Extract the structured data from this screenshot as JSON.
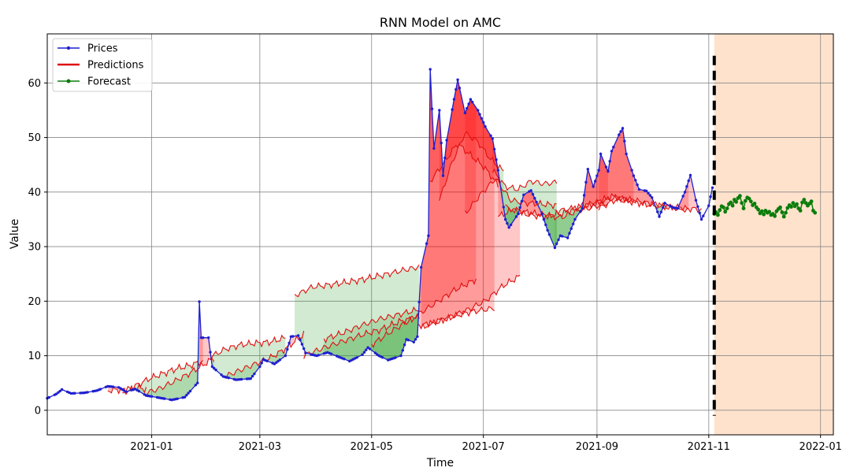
{
  "chart_data": {
    "type": "line",
    "title": "RNN Model on AMC",
    "xlabel": "Time",
    "ylabel": "Value",
    "xlim": [
      "2020-11-05",
      "2022-01-08"
    ],
    "ylim": [
      -4.5,
      69
    ],
    "grid": true,
    "legend_position": "top-left",
    "x_ticks": [
      {
        "date": "2021-01-01",
        "label": "2021-01"
      },
      {
        "date": "2021-03-01",
        "label": "2021-03"
      },
      {
        "date": "2021-05-01",
        "label": "2021-05"
      },
      {
        "date": "2021-07-01",
        "label": "2021-07"
      },
      {
        "date": "2021-09-01",
        "label": "2021-09"
      },
      {
        "date": "2021-11-01",
        "label": "2021-11"
      },
      {
        "date": "2022-01-01",
        "label": "2022-01"
      }
    ],
    "y_ticks": [
      0,
      10,
      20,
      30,
      40,
      50,
      60
    ],
    "legend": [
      {
        "label": "Prices",
        "color": "#1f1fd0",
        "style": "line-marker"
      },
      {
        "label": "Predictions",
        "color": "#e01010",
        "style": "line"
      },
      {
        "label": "Forecast",
        "color": "#0a7d0a",
        "style": "line-marker"
      }
    ],
    "forecast_divider_date": "2021-11-04",
    "forecast_region": [
      "2021-11-04",
      "2022-01-08"
    ],
    "forecast_region_color": "#ffe2cc",
    "series": [
      {
        "name": "Prices",
        "color": "#1f1fd0",
        "points": [
          [
            "2020-11-05",
            2.2
          ],
          [
            "2020-11-10",
            3.0
          ],
          [
            "2020-11-13",
            3.8
          ],
          [
            "2020-11-18",
            3.1
          ],
          [
            "2020-11-25",
            3.2
          ],
          [
            "2020-12-02",
            3.6
          ],
          [
            "2020-12-08",
            4.4
          ],
          [
            "2020-12-14",
            4.2
          ],
          [
            "2020-12-18",
            3.4
          ],
          [
            "2020-12-23",
            3.9
          ],
          [
            "2020-12-29",
            2.7
          ],
          [
            "2021-01-05",
            2.3
          ],
          [
            "2021-01-12",
            1.9
          ],
          [
            "2021-01-19",
            2.4
          ],
          [
            "2021-01-22",
            3.5
          ],
          [
            "2021-01-26",
            5.0
          ],
          [
            "2021-01-27",
            19.9
          ],
          [
            "2021-01-28",
            13.3
          ],
          [
            "2021-02-01",
            13.3
          ],
          [
            "2021-02-03",
            8.0
          ],
          [
            "2021-02-09",
            6.2
          ],
          [
            "2021-02-16",
            5.6
          ],
          [
            "2021-02-24",
            5.8
          ],
          [
            "2021-03-01",
            8.0
          ],
          [
            "2021-03-03",
            9.3
          ],
          [
            "2021-03-09",
            8.5
          ],
          [
            "2021-03-15",
            10.0
          ],
          [
            "2021-03-18",
            13.5
          ],
          [
            "2021-03-22",
            13.7
          ],
          [
            "2021-03-26",
            10.5
          ],
          [
            "2021-04-01",
            10.0
          ],
          [
            "2021-04-07",
            10.6
          ],
          [
            "2021-04-13",
            9.8
          ],
          [
            "2021-04-19",
            9.0
          ],
          [
            "2021-04-26",
            10.2
          ],
          [
            "2021-04-29",
            11.5
          ],
          [
            "2021-05-05",
            10.0
          ],
          [
            "2021-05-10",
            9.2
          ],
          [
            "2021-05-17",
            10.0
          ],
          [
            "2021-05-20",
            13.0
          ],
          [
            "2021-05-24",
            12.5
          ],
          [
            "2021-05-26",
            13.5
          ],
          [
            "2021-05-28",
            26.2
          ],
          [
            "2021-06-01",
            32.0
          ],
          [
            "2021-06-02",
            62.5
          ],
          [
            "2021-06-04",
            48.0
          ],
          [
            "2021-06-07",
            55.0
          ],
          [
            "2021-06-09",
            43.0
          ],
          [
            "2021-06-11",
            49.5
          ],
          [
            "2021-06-15",
            57.0
          ],
          [
            "2021-06-17",
            60.6
          ],
          [
            "2021-06-21",
            54.5
          ],
          [
            "2021-06-24",
            57.0
          ],
          [
            "2021-06-28",
            55.0
          ],
          [
            "2021-07-02",
            52.0
          ],
          [
            "2021-07-06",
            49.8
          ],
          [
            "2021-07-09",
            44.0
          ],
          [
            "2021-07-13",
            35.0
          ],
          [
            "2021-07-15",
            33.5
          ],
          [
            "2021-07-20",
            36.0
          ],
          [
            "2021-07-23",
            39.5
          ],
          [
            "2021-07-27",
            40.3
          ],
          [
            "2021-08-02",
            36.0
          ],
          [
            "2021-08-05",
            33.0
          ],
          [
            "2021-08-09",
            29.8
          ],
          [
            "2021-08-12",
            32.0
          ],
          [
            "2021-08-16",
            31.6
          ],
          [
            "2021-08-20",
            35.0
          ],
          [
            "2021-08-24",
            37.0
          ],
          [
            "2021-08-27",
            44.2
          ],
          [
            "2021-08-30",
            41.0
          ],
          [
            "2021-09-02",
            44.0
          ],
          [
            "2021-09-03",
            47.0
          ],
          [
            "2021-09-07",
            43.8
          ],
          [
            "2021-09-09",
            47.5
          ],
          [
            "2021-09-13",
            50.5
          ],
          [
            "2021-09-15",
            51.7
          ],
          [
            "2021-09-17",
            47.0
          ],
          [
            "2021-09-21",
            43.0
          ],
          [
            "2021-09-24",
            40.5
          ],
          [
            "2021-09-28",
            40.2
          ],
          [
            "2021-10-01",
            39.0
          ],
          [
            "2021-10-05",
            35.5
          ],
          [
            "2021-10-08",
            38.0
          ],
          [
            "2021-10-12",
            37.2
          ],
          [
            "2021-10-15",
            37.0
          ],
          [
            "2021-10-19",
            40.0
          ],
          [
            "2021-10-22",
            43.1
          ],
          [
            "2021-10-25",
            38.5
          ],
          [
            "2021-10-28",
            35.0
          ],
          [
            "2021-11-01",
            37.5
          ],
          [
            "2021-11-03",
            40.8
          ]
        ]
      },
      {
        "name": "Predictions",
        "color": "#e01010",
        "windows": [
          {
            "start": "2020-12-08",
            "end": "2020-12-29",
            "values": [
              3.6,
              3.8,
              3.5,
              4.1,
              3.9
            ]
          },
          {
            "start": "2020-12-16",
            "end": "2021-01-29",
            "values": [
              3.4,
              4.5,
              5.8,
              6.7,
              7.6,
              8.2,
              9.0
            ]
          },
          {
            "start": "2020-12-29",
            "end": "2021-02-04",
            "values": [
              3.2,
              4.0,
              5.2,
              6.5,
              8.0,
              9.6
            ]
          },
          {
            "start": "2021-02-02",
            "end": "2021-03-15",
            "values": [
              9.8,
              11.2,
              12.0,
              12.3,
              12.5,
              13.3
            ]
          },
          {
            "start": "2021-02-10",
            "end": "2021-03-25",
            "values": [
              6.2,
              7.4,
              8.6,
              9.8,
              11.6,
              14.0
            ]
          },
          {
            "start": "2021-03-20",
            "end": "2021-05-27",
            "values": [
              21.0,
              22.6,
              23.0,
              23.5,
              24.1,
              24.8,
              25.6,
              26.3
            ]
          },
          {
            "start": "2021-03-25",
            "end": "2021-05-27",
            "values": [
              10.0,
              11.4,
              12.6,
              13.8,
              14.8,
              16.3,
              17.1
            ]
          },
          {
            "start": "2021-04-05",
            "end": "2021-05-27",
            "values": [
              13.0,
              14.2,
              15.6,
              16.8,
              17.6,
              18.5
            ]
          },
          {
            "start": "2021-05-01",
            "end": "2021-06-27",
            "values": [
              12.0,
              14.6,
              17.0,
              19.5,
              22.1,
              24.0
            ]
          },
          {
            "start": "2021-05-26",
            "end": "2021-07-21",
            "values": [
              15.5,
              16.0,
              17.2,
              18.5,
              20.1,
              22.8,
              24.6
            ]
          },
          {
            "start": "2021-05-28",
            "end": "2021-07-07",
            "values": [
              15.0,
              16.3,
              17.0,
              17.8,
              18.3,
              18.7
            ]
          },
          {
            "start": "2021-06-02",
            "end": "2021-07-09",
            "values": [
              42.0,
              45.3,
              48.9,
              46.7,
              44.5,
              41.3
            ]
          },
          {
            "start": "2021-06-07",
            "end": "2021-07-12",
            "values": [
              38.5,
              45.5,
              50.8,
              49.2,
              46.0,
              43.8
            ]
          },
          {
            "start": "2021-06-21",
            "end": "2021-08-10",
            "values": [
              36.0,
              39.5,
              42.5,
              38.5,
              38.0,
              37.8,
              37.6
            ]
          },
          {
            "start": "2021-07-06",
            "end": "2021-08-10",
            "values": [
              44.0,
              41.0,
              40.5,
              42.0,
              41.5,
              41.8
            ]
          },
          {
            "start": "2021-07-09",
            "end": "2021-09-07",
            "values": [
              35.5,
              36.8,
              36.2,
              35.8,
              35.3,
              36.5,
              37.2,
              38.0
            ]
          },
          {
            "start": "2021-07-13",
            "end": "2021-09-21",
            "values": [
              37.3,
              36.0,
              35.5,
              36.0,
              37.2,
              38.1,
              39.0,
              38.3
            ]
          },
          {
            "start": "2021-08-09",
            "end": "2021-10-21",
            "values": [
              36.5,
              37.0,
              37.8,
              39.2,
              38.5,
              37.9,
              37.2,
              36.7
            ]
          },
          {
            "start": "2021-09-02",
            "end": "2021-10-28",
            "values": [
              37.0,
              38.6,
              38.2,
              37.6,
              37.4,
              37.0,
              36.8
            ]
          }
        ]
      },
      {
        "name": "Forecast",
        "color": "#0a7d0a",
        "start": "2021-11-04",
        "step_days": 1,
        "values": [
          36.0,
          36.3,
          35.8,
          36.7,
          37.4,
          37.2,
          36.4,
          37.0,
          37.8,
          38.1,
          37.5,
          38.6,
          38.2,
          38.9,
          39.3,
          38.0,
          37.0,
          38.4,
          39.0,
          38.8,
          38.3,
          37.6,
          37.9,
          37.2,
          36.8,
          36.1,
          36.5,
          35.9,
          36.6,
          36.2,
          36.4,
          35.8,
          36.0,
          35.6,
          36.5,
          36.9,
          37.2,
          36.3,
          35.5,
          36.2,
          37.1,
          37.6,
          37.3,
          38.0,
          37.4,
          37.8,
          37.0,
          36.6,
          38.1,
          38.6,
          38.0,
          37.5,
          37.9,
          38.3,
          36.6,
          36.2
        ]
      }
    ]
  }
}
